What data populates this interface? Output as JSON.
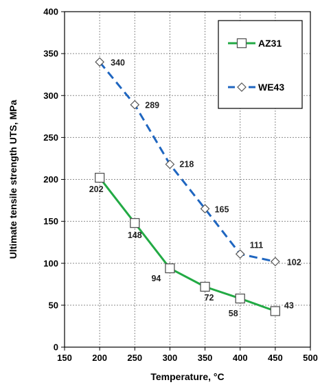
{
  "chart_data": {
    "type": "line",
    "title": "",
    "xlabel": "Temperature, °C",
    "ylabel": "Ultimate tensile strength UTS, MPa",
    "xlim": [
      150,
      500
    ],
    "ylim": [
      0,
      400
    ],
    "x_ticks": [
      "150",
      "200",
      "250",
      "300",
      "350",
      "400",
      "450",
      "500"
    ],
    "y_ticks": [
      "0",
      "50",
      "100",
      "150",
      "200",
      "250",
      "300",
      "350",
      "400"
    ],
    "grid": true,
    "legend_position": "top-right",
    "series": [
      {
        "name": "AZ31",
        "color": "#22AA44",
        "line_style": "solid",
        "marker": "square",
        "x": [
          200,
          250,
          300,
          350,
          400,
          450
        ],
        "y": [
          202,
          148,
          94,
          72,
          58,
          43
        ],
        "labels": [
          "202",
          "148",
          "94",
          "72",
          "58",
          "43"
        ]
      },
      {
        "name": "WE43",
        "color": "#1F66C0",
        "line_style": "dashed",
        "marker": "diamond",
        "x": [
          200,
          250,
          300,
          350,
          400,
          450
        ],
        "y": [
          340,
          289,
          218,
          165,
          111,
          102
        ],
        "labels": [
          "340",
          "289",
          "218",
          "165",
          "111",
          "102"
        ]
      }
    ]
  }
}
